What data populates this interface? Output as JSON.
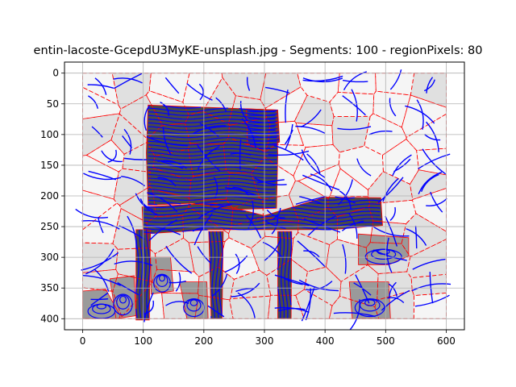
{
  "chart_data": {
    "type": "heatmap",
    "title": "entin-lacoste-GcepdU3MyKE-unsplash.jpg - Segments: 100 - regionPixels: 80",
    "xlabel": "",
    "ylabel": "",
    "xlim": [
      -30,
      630
    ],
    "ylim": [
      418,
      -18
    ],
    "y_inverted": true,
    "grid": true,
    "xticks": [
      0,
      100,
      200,
      300,
      400,
      500,
      600
    ],
    "yticks": [
      0,
      50,
      100,
      150,
      200,
      250,
      300,
      350,
      400
    ],
    "image_extent": {
      "x": [
        0,
        600
      ],
      "y": [
        0,
        400
      ]
    },
    "segment_count": 100,
    "colors": {
      "background_light": "#e0e0e0",
      "background_white": "#f5f5f5",
      "chair_dark": "#4a4a4a",
      "chair_mid": "#9a9a9a",
      "boundary": "#ff0000",
      "contours": "#0000ff"
    },
    "dark_regions": [
      {
        "name": "chair-back",
        "points": [
          [
            108,
            52
          ],
          [
            320,
            60
          ],
          [
            322,
            132
          ],
          [
            320,
            220
          ],
          [
            250,
            222
          ],
          [
            180,
            212
          ],
          [
            108,
            215
          ],
          [
            105,
            130
          ]
        ]
      },
      {
        "name": "chair-backrest-right",
        "points": [
          [
            270,
            58
          ],
          [
            322,
            60
          ],
          [
            325,
            112
          ],
          [
            302,
            128
          ],
          [
            272,
            115
          ]
        ]
      },
      {
        "name": "chair-seat",
        "points": [
          [
            98,
            218
          ],
          [
            218,
            212
          ],
          [
            300,
            232
          ],
          [
            400,
            202
          ],
          [
            492,
            203
          ],
          [
            495,
            248
          ],
          [
            410,
            255
          ],
          [
            290,
            255
          ],
          [
            210,
            255
          ],
          [
            100,
            262
          ]
        ]
      },
      {
        "name": "chair-leg-left",
        "points": [
          [
            88,
            255
          ],
          [
            112,
            255
          ],
          [
            110,
            402
          ],
          [
            88,
            402
          ]
        ]
      },
      {
        "name": "chair-leg-front-left",
        "points": [
          [
            208,
            258
          ],
          [
            232,
            258
          ],
          [
            230,
            400
          ],
          [
            212,
            400
          ]
        ]
      },
      {
        "name": "chair-leg-front-right",
        "points": [
          [
            322,
            258
          ],
          [
            345,
            258
          ],
          [
            344,
            400
          ],
          [
            322,
            400
          ]
        ]
      }
    ],
    "mid_regions": [
      {
        "name": "floor-patch-left",
        "points": [
          [
            0,
            355
          ],
          [
            38,
            352
          ],
          [
            62,
            395
          ],
          [
            60,
            400
          ],
          [
            0,
            400
          ]
        ]
      },
      {
        "name": "floor-patch-middle",
        "points": [
          [
            112,
            300
          ],
          [
            145,
            300
          ],
          [
            150,
            355
          ],
          [
            113,
            360
          ]
        ]
      },
      {
        "name": "floor-patch-bottom",
        "points": [
          [
            45,
            335
          ],
          [
            85,
            330
          ],
          [
            88,
            395
          ],
          [
            55,
            400
          ]
        ]
      },
      {
        "name": "floor-patch-right",
        "points": [
          [
            455,
            262
          ],
          [
            538,
            268
          ],
          [
            538,
            298
          ],
          [
            505,
            312
          ],
          [
            455,
            312
          ]
        ]
      },
      {
        "name": "floor-patch-lower-right",
        "points": [
          [
            440,
            340
          ],
          [
            505,
            340
          ],
          [
            508,
            400
          ],
          [
            445,
            400
          ]
        ]
      },
      {
        "name": "floor-patch-under-seat",
        "points": [
          [
            160,
            340
          ],
          [
            205,
            340
          ],
          [
            207,
            400
          ],
          [
            172,
            400
          ]
        ]
      }
    ]
  }
}
